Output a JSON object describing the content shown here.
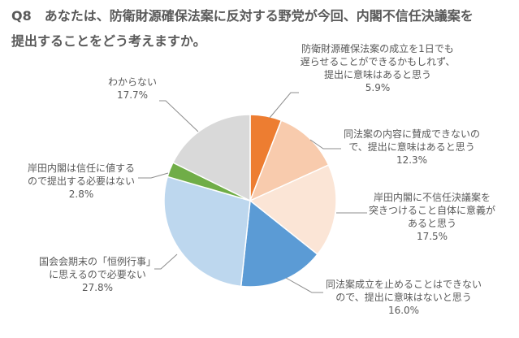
{
  "chart_data": {
    "type": "pie",
    "title": [
      "Q8　あなたは、防衛財源確保法案に反対する野党が今回、内閣不信任決議案を",
      "提出することをどう考えますか。"
    ],
    "slices": [
      {
        "label_lines": [
          "防衛財源確保法案の成立を1日でも",
          "遅らせることができるかもしれず、",
          "提出に意味はあると思う"
        ],
        "value": 5.9,
        "value_label": "5.9%",
        "color": "#ED7D31"
      },
      {
        "label_lines": [
          "同法案の内容に賛成できないの",
          "で、提出に意味はあると思う"
        ],
        "value": 12.3,
        "value_label": "12.3%",
        "color": "#F8CBAD"
      },
      {
        "label_lines": [
          "岸田内閣に不信任決議案を",
          "突きつけること自体に意義が",
          "あると思う"
        ],
        "value": 17.5,
        "value_label": "17.5%",
        "color": "#FBE5D6"
      },
      {
        "label_lines": [
          "同法案成立を止めることはできない",
          "ので、提出に意味はないと思う"
        ],
        "value": 16.0,
        "value_label": "16.0%",
        "color": "#5B9BD5"
      },
      {
        "label_lines": [
          "国会会期末の「恒例行事」",
          "に思えるので必要ない"
        ],
        "value": 27.8,
        "value_label": "27.8%",
        "color": "#BDD7EE"
      },
      {
        "label_lines": [
          "岸田内閣は信任に値する",
          "ので提出する必要はない"
        ],
        "value": 2.8,
        "value_label": "2.8%",
        "color": "#70AD47"
      },
      {
        "label_lines": [
          "わからない"
        ],
        "value": 17.7,
        "value_label": "17.7%",
        "color": "#D9D9D9"
      }
    ]
  }
}
